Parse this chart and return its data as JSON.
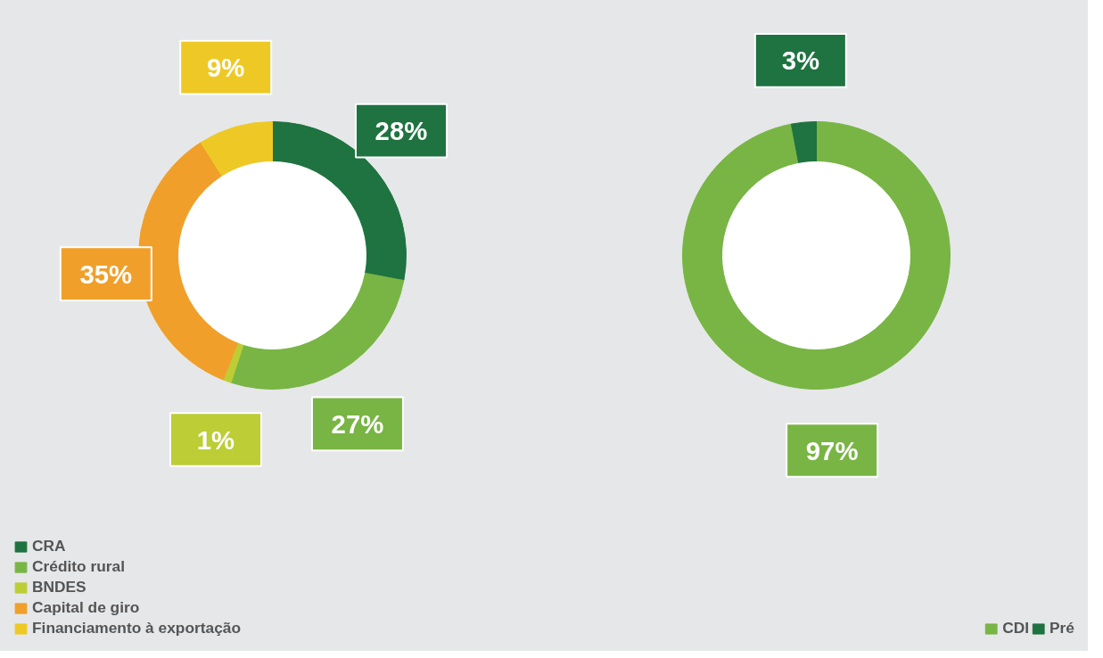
{
  "chart_data": [
    {
      "type": "donut",
      "categories": [
        "CRA",
        "Crédito rural",
        "BNDES",
        "Capital de giro",
        "Financiamento à exportação"
      ],
      "values": [
        28,
        27,
        1,
        35,
        9
      ],
      "colors": [
        "#1e7340",
        "#78b544",
        "#bccd36",
        "#f0a02a",
        "#eec925"
      ],
      "value_labels": [
        "28%",
        "27%",
        "1%",
        "35%",
        "9%"
      ],
      "legend": "bottom left"
    },
    {
      "type": "donut",
      "categories": [
        "CDI",
        "Pré"
      ],
      "values": [
        97,
        3
      ],
      "colors": [
        "#78b544",
        "#1e7340"
      ],
      "value_labels": [
        "97%",
        "3%"
      ],
      "legend": "bottom right"
    }
  ]
}
